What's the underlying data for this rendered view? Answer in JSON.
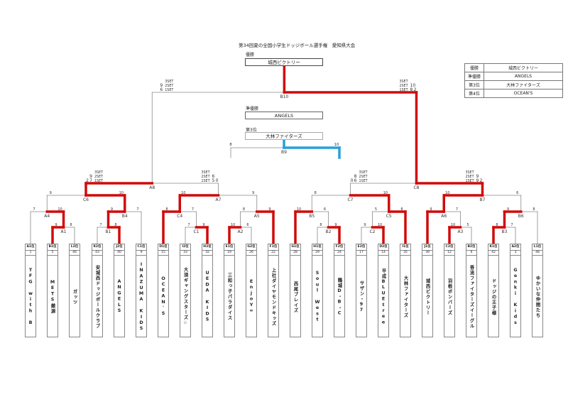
{
  "title": "第34回夏の全国小学生ドッジボール選手権　愛知県大会",
  "podium": {
    "champion_label": "優勝",
    "champion": "城西ビクトリー",
    "runner_up_label": "準優勝",
    "runner_up": "ANGELS",
    "third_label": "第3位",
    "third": "大林ファイターズ"
  },
  "results_table": [
    {
      "rank": "優勝",
      "team": "城西ビクトリー"
    },
    {
      "rank": "準優勝",
      "team": "ANGELS"
    },
    {
      "rank": "第3位",
      "team": "大林ファイターズ"
    },
    {
      "rank": "第4位",
      "team": "OCEAN'S"
    }
  ],
  "teams": [
    {
      "seed": "A1位",
      "num": "1",
      "name": "TFG with B"
    },
    {
      "seed": "B1位",
      "num": "5",
      "name": "METS厳源"
    },
    {
      "seed": "L2位",
      "num": "46",
      "name": "ガッツ"
    },
    {
      "seed": "K2位",
      "num": "43",
      "name": "安城西ドッジボールクラブ"
    },
    {
      "seed": "J2位",
      "num": "40",
      "name": "ANGELS"
    },
    {
      "seed": "C1位",
      "num": "9",
      "name": "INAZUMA KIDS"
    },
    {
      "seed": "D1位",
      "num": "15",
      "name": "OCEAN'S"
    },
    {
      "seed": "I2位",
      "num": "33",
      "name": "大須ギャングスターズ☆"
    },
    {
      "seed": "H2位",
      "num": "32",
      "name": "UEDA KIDS"
    },
    {
      "seed": "E1位",
      "num": "19",
      "name": "三和っ子パラダイス"
    },
    {
      "seed": "G2位",
      "num": "26",
      "name": "EnjoY∞"
    },
    {
      "seed": "F1位",
      "num": "22",
      "name": "上社ダイヤモンドキッズ"
    },
    {
      "seed": "G1位",
      "num": "28",
      "name": "西尾ブレイズ"
    },
    {
      "seed": "H1位",
      "num": "29",
      "name": "Soul West"
    },
    {
      "seed": "F2位",
      "num": "24",
      "name": "鶴城D・B・C"
    },
    {
      "seed": "E2位",
      "num": "17",
      "name": "サザン・97"
    },
    {
      "seed": "D2位",
      "num": "14",
      "name": "平成BLUEtree"
    },
    {
      "seed": "I1位",
      "num": "35",
      "name": "大林ファイターズ"
    },
    {
      "seed": "J1位",
      "num": "39",
      "name": "城西ビクトリー"
    },
    {
      "seed": "C2位",
      "num": "12",
      "name": "羽根ボンバーズ"
    },
    {
      "seed": "B2位",
      "num": "6",
      "name": "香流ファイターズイーグル"
    },
    {
      "seed": "K1位",
      "num": "42",
      "name": "ドッジの王子様"
    },
    {
      "seed": "A2位",
      "num": "3",
      "name": "Genki Kids"
    },
    {
      "seed": "L1位",
      "num": "48",
      "name": "ゆかいな仲間たち"
    }
  ],
  "matches": [
    {
      "id": "A1",
      "left": "9",
      "right": "8"
    },
    {
      "id": "B1",
      "left": "7",
      "right": "8"
    },
    {
      "id": "C1",
      "left": "7",
      "right": "9"
    },
    {
      "id": "A2",
      "left": "10",
      "right": "6"
    },
    {
      "id": "B2",
      "left": "8",
      "right": "9"
    },
    {
      "id": "C2",
      "left": "9",
      "right": "10"
    },
    {
      "id": "A3",
      "left": "10",
      "right": "5"
    },
    {
      "id": "B3",
      "left": "8",
      "right": "7"
    },
    {
      "id": "A4",
      "left": "7",
      "right": "10"
    },
    {
      "id": "B4",
      "left": "9",
      "right": "7"
    },
    {
      "id": "C4",
      "left": "8",
      "right": "7"
    },
    {
      "id": "A5",
      "left": "8",
      "right": "9"
    },
    {
      "id": "B5",
      "left": "10",
      "right": "6"
    },
    {
      "id": "C5",
      "left": "5",
      "right": "8"
    },
    {
      "id": "A6",
      "left": "9",
      "right": "7"
    },
    {
      "id": "B6",
      "left": "9",
      "right": "8"
    },
    {
      "id": "C6",
      "left": "9",
      "right": "10"
    },
    {
      "id": "A7",
      "left": "10",
      "right": "9"
    },
    {
      "id": "C7",
      "left": "8",
      "right": "10"
    },
    {
      "id": "B7",
      "left": "10",
      "right": "6"
    },
    {
      "id": "A8",
      "left": "",
      "right": ""
    },
    {
      "id": "C8",
      "left": "",
      "right": ""
    },
    {
      "id": "B10",
      "left": "",
      "right": ""
    },
    {
      "id": "B9",
      "left": "8",
      "right": "10"
    }
  ],
  "set_labels": {
    "s3": "3SET",
    "s2": "2SET",
    "s1": "1SET"
  },
  "set_scores": {
    "B10": {
      "left": {
        "s2": "9",
        "s1": "6",
        "total": ""
      },
      "right": {
        "s2": "10",
        "s1": "8",
        "total": "2"
      }
    },
    "A8": {
      "left": {
        "s2": "9",
        "s1": "7",
        "total": "2"
      },
      "right": {
        "s2": "6",
        "s1": "5",
        "total": "0"
      }
    },
    "C8": {
      "left": {
        "s2": "8",
        "s1": "6",
        "total": "0"
      },
      "right": {
        "s2": "9",
        "s1": "9",
        "total": "2"
      }
    }
  },
  "colors": {
    "winner_path": "#d10a0a",
    "third_place_path": "#2a9fd8",
    "line": "#888888"
  }
}
